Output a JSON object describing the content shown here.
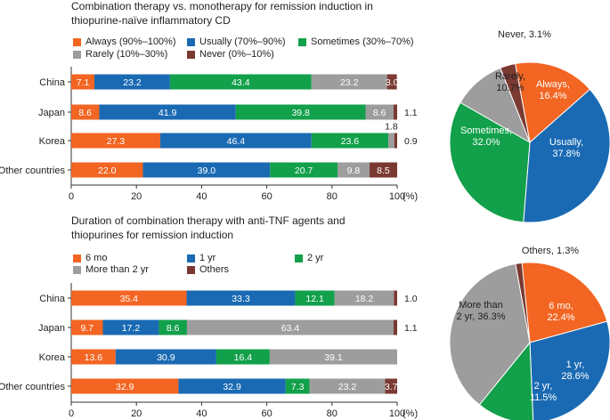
{
  "colors": {
    "always": "#f26522",
    "usually": "#1a6ab3",
    "sometimes": "#12a04a",
    "rarely": "#9d9d9d",
    "never": "#7a3a32",
    "m6": "#f26522",
    "y1": "#1a6ab3",
    "y2": "#12a04a",
    "more2": "#9d9d9d",
    "others": "#7a3a32"
  },
  "chart_data": [
    {
      "type": "bar",
      "orientation": "horizontal-stacked",
      "title": "Combination therapy vs. monotherapy for remission induction in thiopurine-naïve inflammatory CD",
      "title_lines": [
        "Combination therapy vs. monotherapy for remission induction in",
        "thiopurine-naïve inflammatory CD"
      ],
      "categories": [
        "China",
        "Japan",
        "Korea",
        "Other countries"
      ],
      "series": [
        {
          "key": "always",
          "name": "Always (90%–100%)",
          "values": [
            7.1,
            8.6,
            27.3,
            22.0
          ]
        },
        {
          "key": "usually",
          "name": "Usually (70%–90%)",
          "values": [
            23.2,
            41.9,
            46.4,
            39.0
          ]
        },
        {
          "key": "sometimes",
          "name": "Sometimes (30%–70%)",
          "values": [
            43.4,
            39.8,
            23.6,
            20.7
          ]
        },
        {
          "key": "rarely",
          "name": "Rarely (10%–30%)",
          "values": [
            23.2,
            8.6,
            1.8,
            9.8
          ]
        },
        {
          "key": "never",
          "name": "Never (0%–10%)",
          "values": [
            3.0,
            1.1,
            0.9,
            8.5
          ]
        }
      ],
      "value_labels": {
        "always": [
          "7.1",
          "8.6",
          "27.3",
          "22.0"
        ],
        "usually": [
          "23.2",
          "41.9",
          "46.4",
          "39.0"
        ],
        "sometimes": [
          "43.4",
          "39.8",
          "23.6",
          "20.7"
        ],
        "rarely": [
          "23.2",
          "8.6",
          "1.8",
          "9.8"
        ],
        "never": [
          "3.0",
          "1.1",
          "0.9",
          "8.5"
        ]
      },
      "xticks": [
        "0",
        "20",
        "40",
        "60",
        "80",
        "100"
      ],
      "xunit": "(%)",
      "xlim": [
        0,
        100
      ]
    },
    {
      "type": "bar",
      "orientation": "horizontal-stacked",
      "title": "Duration of combination therapy with anti-TNF agents and thiopurines for remission induction",
      "title_lines": [
        "Duration of combination therapy with anti-TNF agents and",
        "thiopurines for remission induction"
      ],
      "categories": [
        "China",
        "Japan",
        "Korea",
        "Other countries"
      ],
      "series": [
        {
          "key": "m6",
          "name": "6 mo",
          "values": [
            35.4,
            9.7,
            13.6,
            32.9
          ]
        },
        {
          "key": "y1",
          "name": "1 yr",
          "values": [
            33.3,
            17.2,
            30.9,
            32.9
          ]
        },
        {
          "key": "y2",
          "name": "2 yr",
          "values": [
            12.1,
            8.6,
            16.4,
            7.3
          ]
        },
        {
          "key": "more2",
          "name": "More than 2 yr",
          "values": [
            18.2,
            63.4,
            39.1,
            23.2
          ]
        },
        {
          "key": "others",
          "name": "Others",
          "values": [
            1.0,
            1.1,
            0,
            3.7
          ]
        }
      ],
      "value_labels": {
        "m6": [
          "35.4",
          "9.7",
          "13.6",
          "32.9"
        ],
        "y1": [
          "33.3",
          "17.2",
          "30.9",
          "32.9"
        ],
        "y2": [
          "12.1",
          "8.6",
          "16.4",
          "7.3"
        ],
        "more2": [
          "18.2",
          "63.4",
          "39.1",
          "23.2"
        ],
        "others": [
          "1.0",
          "1.1",
          "",
          "3.7"
        ]
      },
      "xticks": [
        "0",
        "20",
        "40",
        "60",
        "80",
        "100"
      ],
      "xunit": "(%)",
      "xlim": [
        0,
        100
      ]
    },
    {
      "type": "pie",
      "title": "",
      "slices": [
        {
          "key": "always",
          "label_lines": [
            "Always,",
            "16.4%"
          ],
          "value": 16.4
        },
        {
          "key": "usually",
          "label_lines": [
            "Usually,",
            "37.8%"
          ],
          "value": 37.8
        },
        {
          "key": "sometimes",
          "label_lines": [
            "Sometimes,",
            "32.0%"
          ],
          "value": 32.0
        },
        {
          "key": "rarely",
          "label_lines": [
            "Rarely,",
            "10.7%"
          ],
          "value": 10.7
        },
        {
          "key": "never",
          "label_lines": [
            "Never, 3.1%"
          ],
          "value": 3.1
        }
      ]
    },
    {
      "type": "pie",
      "title": "",
      "slices": [
        {
          "key": "m6",
          "label_lines": [
            "6 mo,",
            "22.4%"
          ],
          "value": 22.4
        },
        {
          "key": "y1",
          "label_lines": [
            "1 yr,",
            "28.6%"
          ],
          "value": 28.6
        },
        {
          "key": "y2",
          "label_lines": [
            "2 yr,",
            "11.5%"
          ],
          "value": 11.5
        },
        {
          "key": "more2",
          "label_lines": [
            "More than",
            "2 yr, 36.3%"
          ],
          "value": 36.3
        },
        {
          "key": "others",
          "label_lines": [
            "Others, 1.3%"
          ],
          "value": 1.3
        }
      ]
    }
  ]
}
